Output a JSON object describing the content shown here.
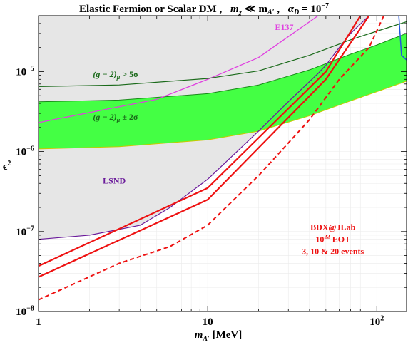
{
  "chart_data": {
    "type": "line",
    "title": "Elastic Fermion or Scalar DM ,   mχ ≪ mA′ ,   αD = 10⁻⁷",
    "title_parts": {
      "main": "Elastic Fermion or Scalar DM ,",
      "mass_rel": "m",
      "mass_rel_sub": "χ",
      "mass_rel_op": " ≪ m",
      "mass_rel_sub2": "A′",
      "mass_rel_tail": " ,",
      "coupling": "α",
      "coupling_sub": "D",
      "coupling_eq": " = 10",
      "coupling_exp": "−7"
    },
    "xlabel": {
      "base": "m",
      "sub": "A′",
      "unit": " [MeV]"
    },
    "ylabel": {
      "base": "ϵ",
      "sup": "2"
    },
    "x_scale": "log",
    "y_scale": "log",
    "xlim": [
      1,
      150
    ],
    "ylim": [
      1e-08,
      5e-05
    ],
    "x_ticks": [
      {
        "value": 1,
        "label": "1"
      },
      {
        "value": 10,
        "label": "10"
      },
      {
        "value": 100,
        "label": "10",
        "sup": "2"
      }
    ],
    "y_ticks": [
      {
        "value": 1e-08,
        "label": "10",
        "sup": "−8"
      },
      {
        "value": 1e-07,
        "label": "10",
        "sup": "−7"
      },
      {
        "value": 1e-06,
        "label": "10",
        "sup": "−6"
      },
      {
        "value": 1e-05,
        "label": "10",
        "sup": "−5"
      }
    ],
    "grid": true,
    "excluded_region": {
      "color": "#e6e6e6",
      "boundary": [
        [
          1,
          8e-08
        ],
        [
          2,
          9e-08
        ],
        [
          4,
          1.2e-07
        ],
        [
          6,
          2e-07
        ],
        [
          10,
          4.5e-07
        ],
        [
          20,
          1.8e-06
        ],
        [
          30,
          4.2e-06
        ],
        [
          45,
          9.5e-06
        ],
        [
          50,
          1.2e-05
        ],
        [
          60,
          2e-05
        ],
        [
          70,
          3e-05
        ],
        [
          90,
          5e-05
        ]
      ]
    },
    "series": [
      {
        "name": "E137",
        "color": "#e040e0",
        "style": "solid",
        "width": 1.3,
        "points": [
          [
            1,
            2.3e-06
          ],
          [
            5,
            4.5e-06
          ],
          [
            10,
            8e-06
          ],
          [
            20,
            1.5e-05
          ],
          [
            45,
            5e-05
          ]
        ]
      },
      {
        "name": "LSND",
        "color": "#6a1a9a",
        "style": "solid",
        "width": 1.2,
        "points": [
          [
            1,
            8e-08
          ],
          [
            2,
            9e-08
          ],
          [
            4,
            1.2e-07
          ],
          [
            6,
            2e-07
          ],
          [
            10,
            4.5e-07
          ],
          [
            20,
            1.8e-06
          ],
          [
            30,
            4.2e-06
          ],
          [
            45,
            9.5e-06
          ],
          [
            50,
            1.2e-05
          ],
          [
            60,
            2e-05
          ],
          [
            70,
            3e-05
          ],
          [
            90,
            5e-05
          ]
        ]
      },
      {
        "name": "(g−2)μ > 5σ",
        "color": "#1a6a1a",
        "style": "solid",
        "width": 1.2,
        "points": [
          [
            1,
            6.5e-06
          ],
          [
            3,
            6.8e-06
          ],
          [
            10,
            8.2e-06
          ],
          [
            20,
            1.02e-05
          ],
          [
            40,
            1.6e-05
          ],
          [
            70,
            2.5e-05
          ],
          [
            100,
            3.2e-05
          ],
          [
            150,
            4.2e-05
          ]
        ]
      },
      {
        "name": "BDX@JLab 3 events",
        "color": "#ee1111",
        "style": "solid",
        "width": 2.2,
        "points": [
          [
            1,
            3.7e-08
          ],
          [
            10,
            3.5e-07
          ],
          [
            50,
            1e-05
          ],
          [
            80,
            5e-05
          ]
        ]
      },
      {
        "name": "BDX@JLab 10 events",
        "color": "#ee1111",
        "style": "solid",
        "width": 2.2,
        "points": [
          [
            1,
            2.7e-08
          ],
          [
            10,
            2.5e-07
          ],
          [
            50,
            8e-06
          ],
          [
            90,
            5e-05
          ]
        ]
      },
      {
        "name": "BDX@JLab 20 events",
        "color": "#ee1111",
        "style": "dashed",
        "width": 2.0,
        "points": [
          [
            1,
            1.4e-08
          ],
          [
            3,
            4e-08
          ],
          [
            6,
            6.5e-08
          ],
          [
            10,
            1.2e-07
          ],
          [
            20,
            5e-07
          ],
          [
            40,
            2.5e-06
          ],
          [
            60,
            8e-06
          ],
          [
            90,
            2e-05
          ],
          [
            110,
            5e-05
          ]
        ]
      },
      {
        "name": "blue curve",
        "color": "#2255dd",
        "style": "solid",
        "width": 1.5,
        "points": [
          [
            135,
            5e-05
          ],
          [
            140,
            1.6e-05
          ],
          [
            150,
            1.4e-05
          ]
        ]
      }
    ],
    "band": {
      "name": "(g−2)μ ± 2σ",
      "fill": "#44ff44",
      "edge": "#1a8a1a",
      "upper": [
        [
          1,
          4.2e-06
        ],
        [
          3,
          4.4e-06
        ],
        [
          10,
          5.3e-06
        ],
        [
          20,
          6.8e-06
        ],
        [
          40,
          1.05e-05
        ],
        [
          70,
          1.65e-05
        ],
        [
          100,
          2.15e-05
        ],
        [
          150,
          3e-05
        ]
      ],
      "lower": [
        [
          1,
          1.08e-06
        ],
        [
          3,
          1.15e-06
        ],
        [
          10,
          1.4e-06
        ],
        [
          20,
          1.8e-06
        ],
        [
          40,
          2.8e-06
        ],
        [
          70,
          4.3e-06
        ],
        [
          100,
          5.6e-06
        ],
        [
          150,
          7.6e-06
        ]
      ]
    },
    "annotations": [
      {
        "id": "e137",
        "text": "E137",
        "color": "#e040e0",
        "x": 25,
        "y": 3.3e-05,
        "size": 12
      },
      {
        "id": "gm2_5s",
        "text": "(g − 2)",
        "sub": "μ",
        "tail": " > 5σ",
        "color": "#1a6a1a",
        "x": 2.1,
        "y": 8.6e-06,
        "size": 12,
        "italic": true
      },
      {
        "id": "gm2_2s",
        "text": "(g − 2)",
        "sub": "μ",
        "tail": " ± 2σ",
        "color": "#1a6a1a",
        "x": 2.1,
        "y": 2.5e-06,
        "size": 12,
        "italic": true
      },
      {
        "id": "lsnd",
        "text": "LSND",
        "color": "#6a1a9a",
        "x": 2.4,
        "y": 4e-07,
        "size": 12
      },
      {
        "id": "bdx1",
        "text": "BDX@JLab",
        "color": "#ee1111",
        "x": 55,
        "y": 1.05e-07,
        "size": 12
      },
      {
        "id": "bdx2",
        "text": "10",
        "sup": "22",
        "tail": " EOT",
        "color": "#ee1111",
        "x": 55,
        "y": 7.4e-08,
        "size": 12
      },
      {
        "id": "bdx3",
        "text": "3, 10 & 20 events",
        "color": "#ee1111",
        "x": 55,
        "y": 5.2e-08,
        "size": 12
      }
    ]
  }
}
